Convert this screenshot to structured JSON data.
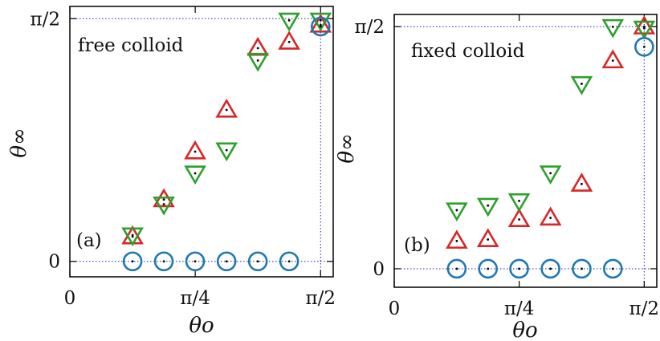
{
  "colors": {
    "series_up": "#d62728",
    "series_down": "#2ca02c",
    "series_circle": "#1f77b4",
    "guide": "#1f1fbf",
    "frame": "#000000"
  },
  "chart_data": [
    {
      "type": "scatter",
      "panel_tag": "(a)",
      "title": "free colloid",
      "xlabel": "θo",
      "ylabel": "θ∞",
      "xlim": [
        0,
        1.65
      ],
      "ylim": [
        -0.1,
        1.65
      ],
      "x_ticks": [
        {
          "value": 0,
          "label": "0"
        },
        {
          "value": 0.7854,
          "label": "π/4"
        },
        {
          "value": 1.5708,
          "label": "π/2"
        }
      ],
      "y_ticks": [
        {
          "value": 0,
          "label": "0"
        },
        {
          "value": 1.5708,
          "label": "π/2"
        }
      ],
      "grid": false,
      "series": [
        {
          "marker": "triangle-up",
          "color": "#d62728",
          "x": [
            0.393,
            0.589,
            0.785,
            0.982,
            1.178,
            1.374,
            1.571
          ],
          "y": [
            0.16,
            0.4,
            0.71,
            0.98,
            1.38,
            1.42,
            1.53
          ]
        },
        {
          "marker": "triangle-down",
          "color": "#2ca02c",
          "x": [
            0.393,
            0.589,
            0.785,
            0.982,
            1.178,
            1.374,
            1.571
          ],
          "y": [
            0.17,
            0.37,
            0.57,
            0.72,
            1.3,
            1.56,
            1.56
          ]
        },
        {
          "marker": "circle",
          "color": "#1f77b4",
          "x": [
            0.393,
            0.589,
            0.785,
            0.982,
            1.178,
            1.374,
            1.571
          ],
          "y": [
            0,
            0,
            0,
            0,
            0,
            0,
            1.52
          ]
        }
      ]
    },
    {
      "type": "scatter",
      "panel_tag": "(b)",
      "title": "fixed colloid",
      "xlabel": "θo",
      "ylabel": "θ∞",
      "xlim": [
        0,
        1.65
      ],
      "ylim": [
        -0.12,
        1.65
      ],
      "x_ticks": [
        {
          "value": 0,
          "label": "0"
        },
        {
          "value": 0.7854,
          "label": "π/4"
        },
        {
          "value": 1.5708,
          "label": "π/2"
        }
      ],
      "y_ticks": [
        {
          "value": 0,
          "label": "0"
        },
        {
          "value": 1.5708,
          "label": "π/2"
        }
      ],
      "grid": false,
      "series": [
        {
          "marker": "triangle-up",
          "color": "#d62728",
          "x": [
            0.393,
            0.589,
            0.785,
            0.982,
            1.178,
            1.374,
            1.571
          ],
          "y": [
            0.18,
            0.19,
            0.32,
            0.33,
            0.55,
            1.35,
            1.57
          ]
        },
        {
          "marker": "triangle-down",
          "color": "#2ca02c",
          "x": [
            0.393,
            0.589,
            0.785,
            0.982,
            1.178,
            1.374,
            1.571
          ],
          "y": [
            0.38,
            0.41,
            0.44,
            0.62,
            1.2,
            1.57,
            1.56
          ]
        },
        {
          "marker": "circle",
          "color": "#1f77b4",
          "x": [
            0.393,
            0.589,
            0.785,
            0.982,
            1.178,
            1.374,
            1.571
          ],
          "y": [
            0,
            0,
            0,
            0,
            0,
            0,
            1.44
          ]
        }
      ]
    }
  ]
}
